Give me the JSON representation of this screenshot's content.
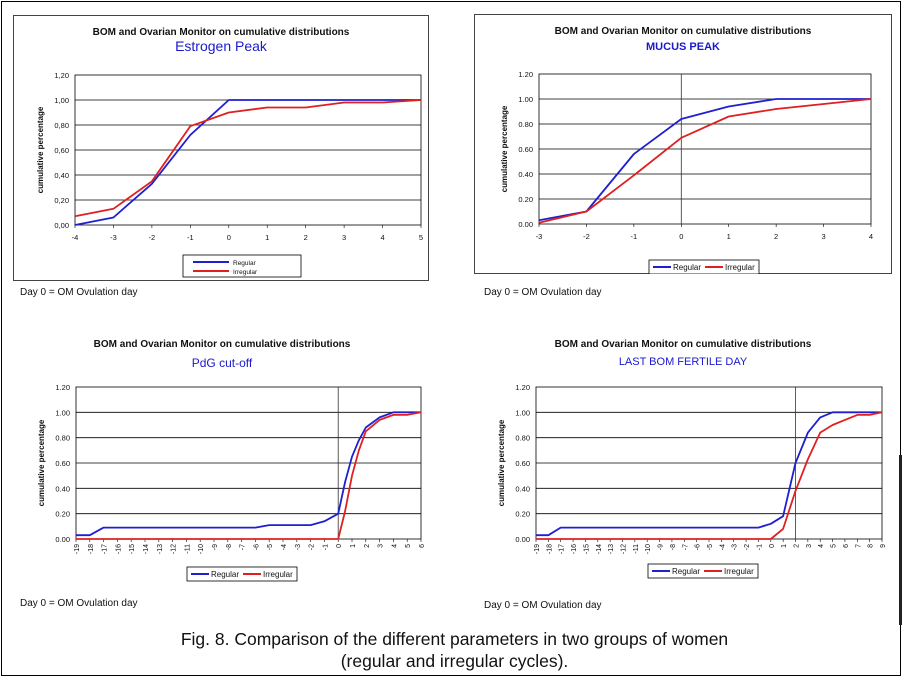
{
  "figure": {
    "caption_line1": "Fig. 8. Comparison of the different parameters in two groups of women",
    "caption_line2": "(regular and irregular cycles).",
    "colors": {
      "regular": "#1f1fd0",
      "irregular": "#e02020",
      "grid": "#000000"
    }
  },
  "chart_data": [
    {
      "type": "line",
      "title": "BOM and Ovarian Monitor on cumulative  distributions",
      "subtitle": "Estrogen Peak",
      "xlabel": "",
      "ylabel": "cumulative percentage",
      "ylim": [
        0,
        1.2
      ],
      "yticks": [
        "0,00",
        "0,20",
        "0,40",
        "0,60",
        "0,80",
        "1,00",
        "1,20"
      ],
      "categories": [
        "-4",
        "-3",
        "-2",
        "-1",
        "0",
        "1",
        "2",
        "3",
        "4",
        "5"
      ],
      "x": [
        -4,
        -3,
        -2,
        -1,
        0,
        1,
        2,
        3,
        4,
        5
      ],
      "series": [
        {
          "name": "Regular",
          "values": [
            0.0,
            0.06,
            0.33,
            0.72,
            1.0,
            1.0,
            1.0,
            1.0,
            1.0,
            1.0
          ]
        },
        {
          "name": "Irregular",
          "values": [
            0.07,
            0.13,
            0.35,
            0.79,
            0.9,
            0.94,
            0.94,
            0.98,
            0.98,
            1.0
          ]
        }
      ],
      "grid": true,
      "vline_at": null,
      "legend": "bottom, stacked",
      "note": "Day 0 = OM Ovulation day"
    },
    {
      "type": "line",
      "title": "BOM and Ovarian Monitor on cumulative distributions",
      "subtitle": "MUCUS PEAK",
      "xlabel": "",
      "ylabel": "cumulative percentage",
      "ylim": [
        0,
        1.2
      ],
      "yticks": [
        "0.00",
        "0.20",
        "0.40",
        "0.60",
        "0.80",
        "1.00",
        "1.20"
      ],
      "categories": [
        "-3",
        "-2",
        "-1",
        "0",
        "1",
        "2",
        "3",
        "4"
      ],
      "x": [
        -3,
        -2,
        -1,
        0,
        1,
        2,
        3,
        4
      ],
      "series": [
        {
          "name": "Regular",
          "values": [
            0.03,
            0.1,
            0.56,
            0.84,
            0.94,
            1.0,
            1.0,
            1.0
          ]
        },
        {
          "name": "Irregular",
          "values": [
            0.01,
            0.1,
            0.39,
            0.69,
            0.86,
            0.92,
            0.96,
            1.0
          ]
        }
      ],
      "grid": true,
      "vline_at": 0,
      "legend": "bottom",
      "note": "Day 0 = OM Ovulation day"
    },
    {
      "type": "line",
      "title": "BOM and Ovarian Monitor on cumulative distributions",
      "subtitle": "PdG cut-off",
      "xlabel": "",
      "ylabel": "cumulative percentage",
      "ylim": [
        0,
        1.2
      ],
      "yticks": [
        "0.00",
        "0.20",
        "0.40",
        "0.60",
        "0.80",
        "1.00",
        "1.20"
      ],
      "categories": [
        "-19",
        "-18",
        "-17",
        "-16",
        "-15",
        "-14",
        "-13",
        "-12",
        "-11",
        "-10",
        "-9",
        "-8",
        "-7",
        "-6",
        "-5",
        "-4",
        "-3",
        "-2",
        "-1",
        "0",
        "1",
        "2",
        "3",
        "4",
        "5",
        "6"
      ],
      "x": [
        -19,
        -18,
        -17,
        -16,
        -15,
        -14,
        -13,
        -12,
        -11,
        -10,
        -9,
        -8,
        -7,
        -6,
        -5,
        -4,
        -3,
        -2,
        -1,
        0,
        0.5,
        1,
        1.5,
        2,
        3,
        4,
        5,
        6
      ],
      "series": [
        {
          "name": "Regular",
          "x": [
            -19,
            -18,
            -17,
            -16,
            -15,
            -14,
            -13,
            -12,
            -11,
            -10,
            -9,
            -8,
            -7,
            -6,
            -5,
            -4,
            -3,
            -2,
            -1,
            0,
            0.5,
            1,
            1.5,
            2,
            3,
            4,
            5,
            6
          ],
          "values": [
            0.03,
            0.03,
            0.09,
            0.09,
            0.09,
            0.09,
            0.09,
            0.09,
            0.09,
            0.09,
            0.09,
            0.09,
            0.09,
            0.09,
            0.11,
            0.11,
            0.11,
            0.11,
            0.14,
            0.2,
            0.45,
            0.65,
            0.78,
            0.88,
            0.96,
            1.0,
            1.0,
            1.0
          ]
        },
        {
          "name": "Irregular",
          "x": [
            -19,
            -18,
            -17,
            -16,
            -15,
            -14,
            -13,
            -12,
            -11,
            -10,
            -9,
            -8,
            -7,
            -6,
            -5,
            -4,
            -3,
            -2,
            -1,
            0,
            0.5,
            1,
            1.5,
            2,
            3,
            4,
            5,
            6
          ],
          "values": [
            0.0,
            0.0,
            0.0,
            0.0,
            0.0,
            0.0,
            0.0,
            0.0,
            0.0,
            0.0,
            0.0,
            0.0,
            0.0,
            0.0,
            0.0,
            0.0,
            0.0,
            0.0,
            0.0,
            0.0,
            0.22,
            0.5,
            0.7,
            0.85,
            0.94,
            0.98,
            0.98,
            1.0
          ]
        }
      ],
      "grid": true,
      "vline_at": 0,
      "legend": "bottom",
      "note": "Day 0 = OM Ovulation day"
    },
    {
      "type": "line",
      "title": "BOM and Ovarian Monitor on cumulative distributions",
      "subtitle": "LAST BOM FERTILE DAY",
      "xlabel": "",
      "ylabel": "cumulative percentage",
      "ylim": [
        0,
        1.2
      ],
      "yticks": [
        "0.00",
        "0.20",
        "0.40",
        "0.60",
        "0.80",
        "1.00",
        "1.20"
      ],
      "categories": [
        "-19",
        "-18",
        "-17",
        "-16",
        "-15",
        "-14",
        "-13",
        "-12",
        "-11",
        "-10",
        "-9",
        "-8",
        "-7",
        "-6",
        "-5",
        "-4",
        "-3",
        "-2",
        "-1",
        "0",
        "1",
        "2",
        "3",
        "4",
        "5",
        "6",
        "7",
        "8",
        "9"
      ],
      "x": [
        -19,
        -18,
        -17,
        -16,
        -15,
        -14,
        -13,
        -12,
        -11,
        -10,
        -9,
        -8,
        -7,
        -6,
        -5,
        -4,
        -3,
        -2,
        -1,
        0,
        1,
        2,
        3,
        4,
        5,
        6,
        7,
        8,
        9
      ],
      "series": [
        {
          "name": "Regular",
          "values": [
            0.03,
            0.03,
            0.09,
            0.09,
            0.09,
            0.09,
            0.09,
            0.09,
            0.09,
            0.09,
            0.09,
            0.09,
            0.09,
            0.09,
            0.09,
            0.09,
            0.09,
            0.09,
            0.09,
            0.12,
            0.18,
            0.6,
            0.84,
            0.96,
            1.0,
            1.0,
            1.0,
            1.0,
            1.0
          ]
        },
        {
          "name": "Irregular",
          "values": [
            0.0,
            0.0,
            0.0,
            0.0,
            0.0,
            0.0,
            0.0,
            0.0,
            0.0,
            0.0,
            0.0,
            0.0,
            0.0,
            0.0,
            0.0,
            0.0,
            0.0,
            0.0,
            0.0,
            0.0,
            0.08,
            0.38,
            0.63,
            0.84,
            0.9,
            0.94,
            0.98,
            0.98,
            1.0
          ]
        }
      ],
      "grid": true,
      "vline_at": 2,
      "legend": "bottom",
      "note": "Day 0 = OM Ovulation day"
    }
  ]
}
